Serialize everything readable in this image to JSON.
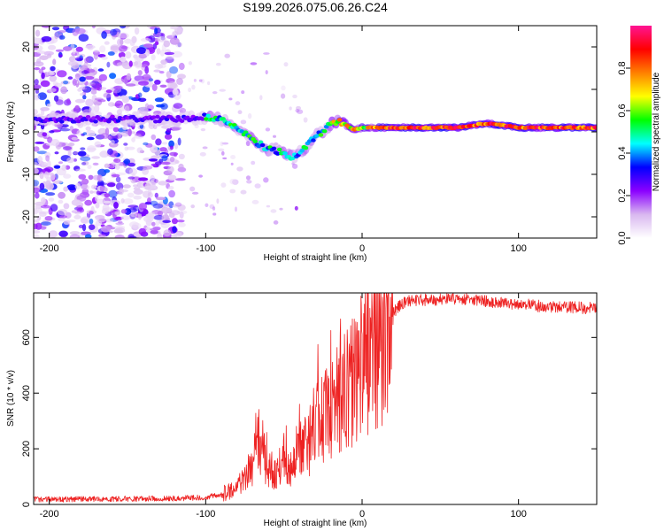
{
  "title": "S199.2026.075.06.26.C24",
  "chart_data": [
    {
      "type": "heatmap",
      "name": "spectrogram",
      "xlabel": "Height of straight line (km)",
      "ylabel": "Frequency (Hz)",
      "xlim": [
        -210,
        150
      ],
      "ylim": [
        -25,
        25
      ],
      "xticks": [
        -200,
        -100,
        0,
        100
      ],
      "xtick_labels": [
        "-200",
        "-100",
        "0",
        "100"
      ],
      "yticks": [
        -20,
        -10,
        0,
        10,
        20
      ],
      "ytick_labels": [
        "-20",
        "-10",
        "0",
        "10",
        "20"
      ],
      "ridge": {
        "description": "dominant frequency line (Hz) vs height (km)",
        "x": [
          -210,
          -180,
          -150,
          -120,
          -100,
          -90,
          -80,
          -70,
          -60,
          -50,
          -45,
          -40,
          -35,
          -30,
          -25,
          -20,
          -15,
          -10,
          -5,
          0,
          20,
          60,
          80,
          100,
          120,
          150
        ],
        "y": [
          3,
          3,
          3,
          3,
          3.5,
          3,
          1,
          -2,
          -4,
          -5,
          -6,
          -5,
          -3,
          -1,
          0,
          2,
          2.5,
          1.5,
          0.5,
          1,
          1,
          1,
          2,
          1,
          1,
          1
        ]
      }
    },
    {
      "type": "colorbar",
      "name": "colorbar",
      "label": "Normalized spectral amplitude",
      "range": [
        0,
        1
      ],
      "ticks": [
        0.0,
        0.2,
        0.4,
        0.6,
        0.8
      ],
      "tick_labels": [
        "0.0",
        "0.2",
        "0.4",
        "0.6",
        "0.8"
      ],
      "colors": [
        "#ffffff",
        "#d9b8f0",
        "#8b00ff",
        "#0000ff",
        "#00ffff",
        "#00ff00",
        "#ffff00",
        "#ff8000",
        "#ff0000",
        "#ff1493"
      ]
    },
    {
      "type": "line",
      "name": "snr",
      "xlabel": "Height of straight line (km)",
      "ylabel": "SNR (10 * v/v)",
      "xlim": [
        -210,
        150
      ],
      "ylim": [
        0,
        760
      ],
      "xticks": [
        -200,
        -100,
        0,
        100
      ],
      "xtick_labels": [
        "-200",
        "-100",
        "0",
        "100"
      ],
      "yticks": [
        0,
        200,
        400,
        600
      ],
      "ytick_labels": [
        "0",
        "200",
        "400",
        "600"
      ],
      "color": "#ee2222",
      "series": [
        {
          "name": "SNR",
          "x": [
            -210,
            -150,
            -120,
            -100,
            -90,
            -80,
            -70,
            -66,
            -60,
            -55,
            -50,
            -45,
            -40,
            -35,
            -30,
            -25,
            -20,
            -15,
            -10,
            -5,
            0,
            5,
            10,
            15,
            20,
            25,
            30,
            40,
            60,
            80,
            100,
            120,
            150
          ],
          "y": [
            18,
            20,
            22,
            25,
            35,
            60,
            130,
            250,
            120,
            110,
            170,
            120,
            250,
            200,
            300,
            320,
            360,
            390,
            410,
            450,
            500,
            550,
            600,
            630,
            690,
            720,
            730,
            735,
            740,
            730,
            720,
            710,
            705
          ]
        }
      ]
    }
  ]
}
